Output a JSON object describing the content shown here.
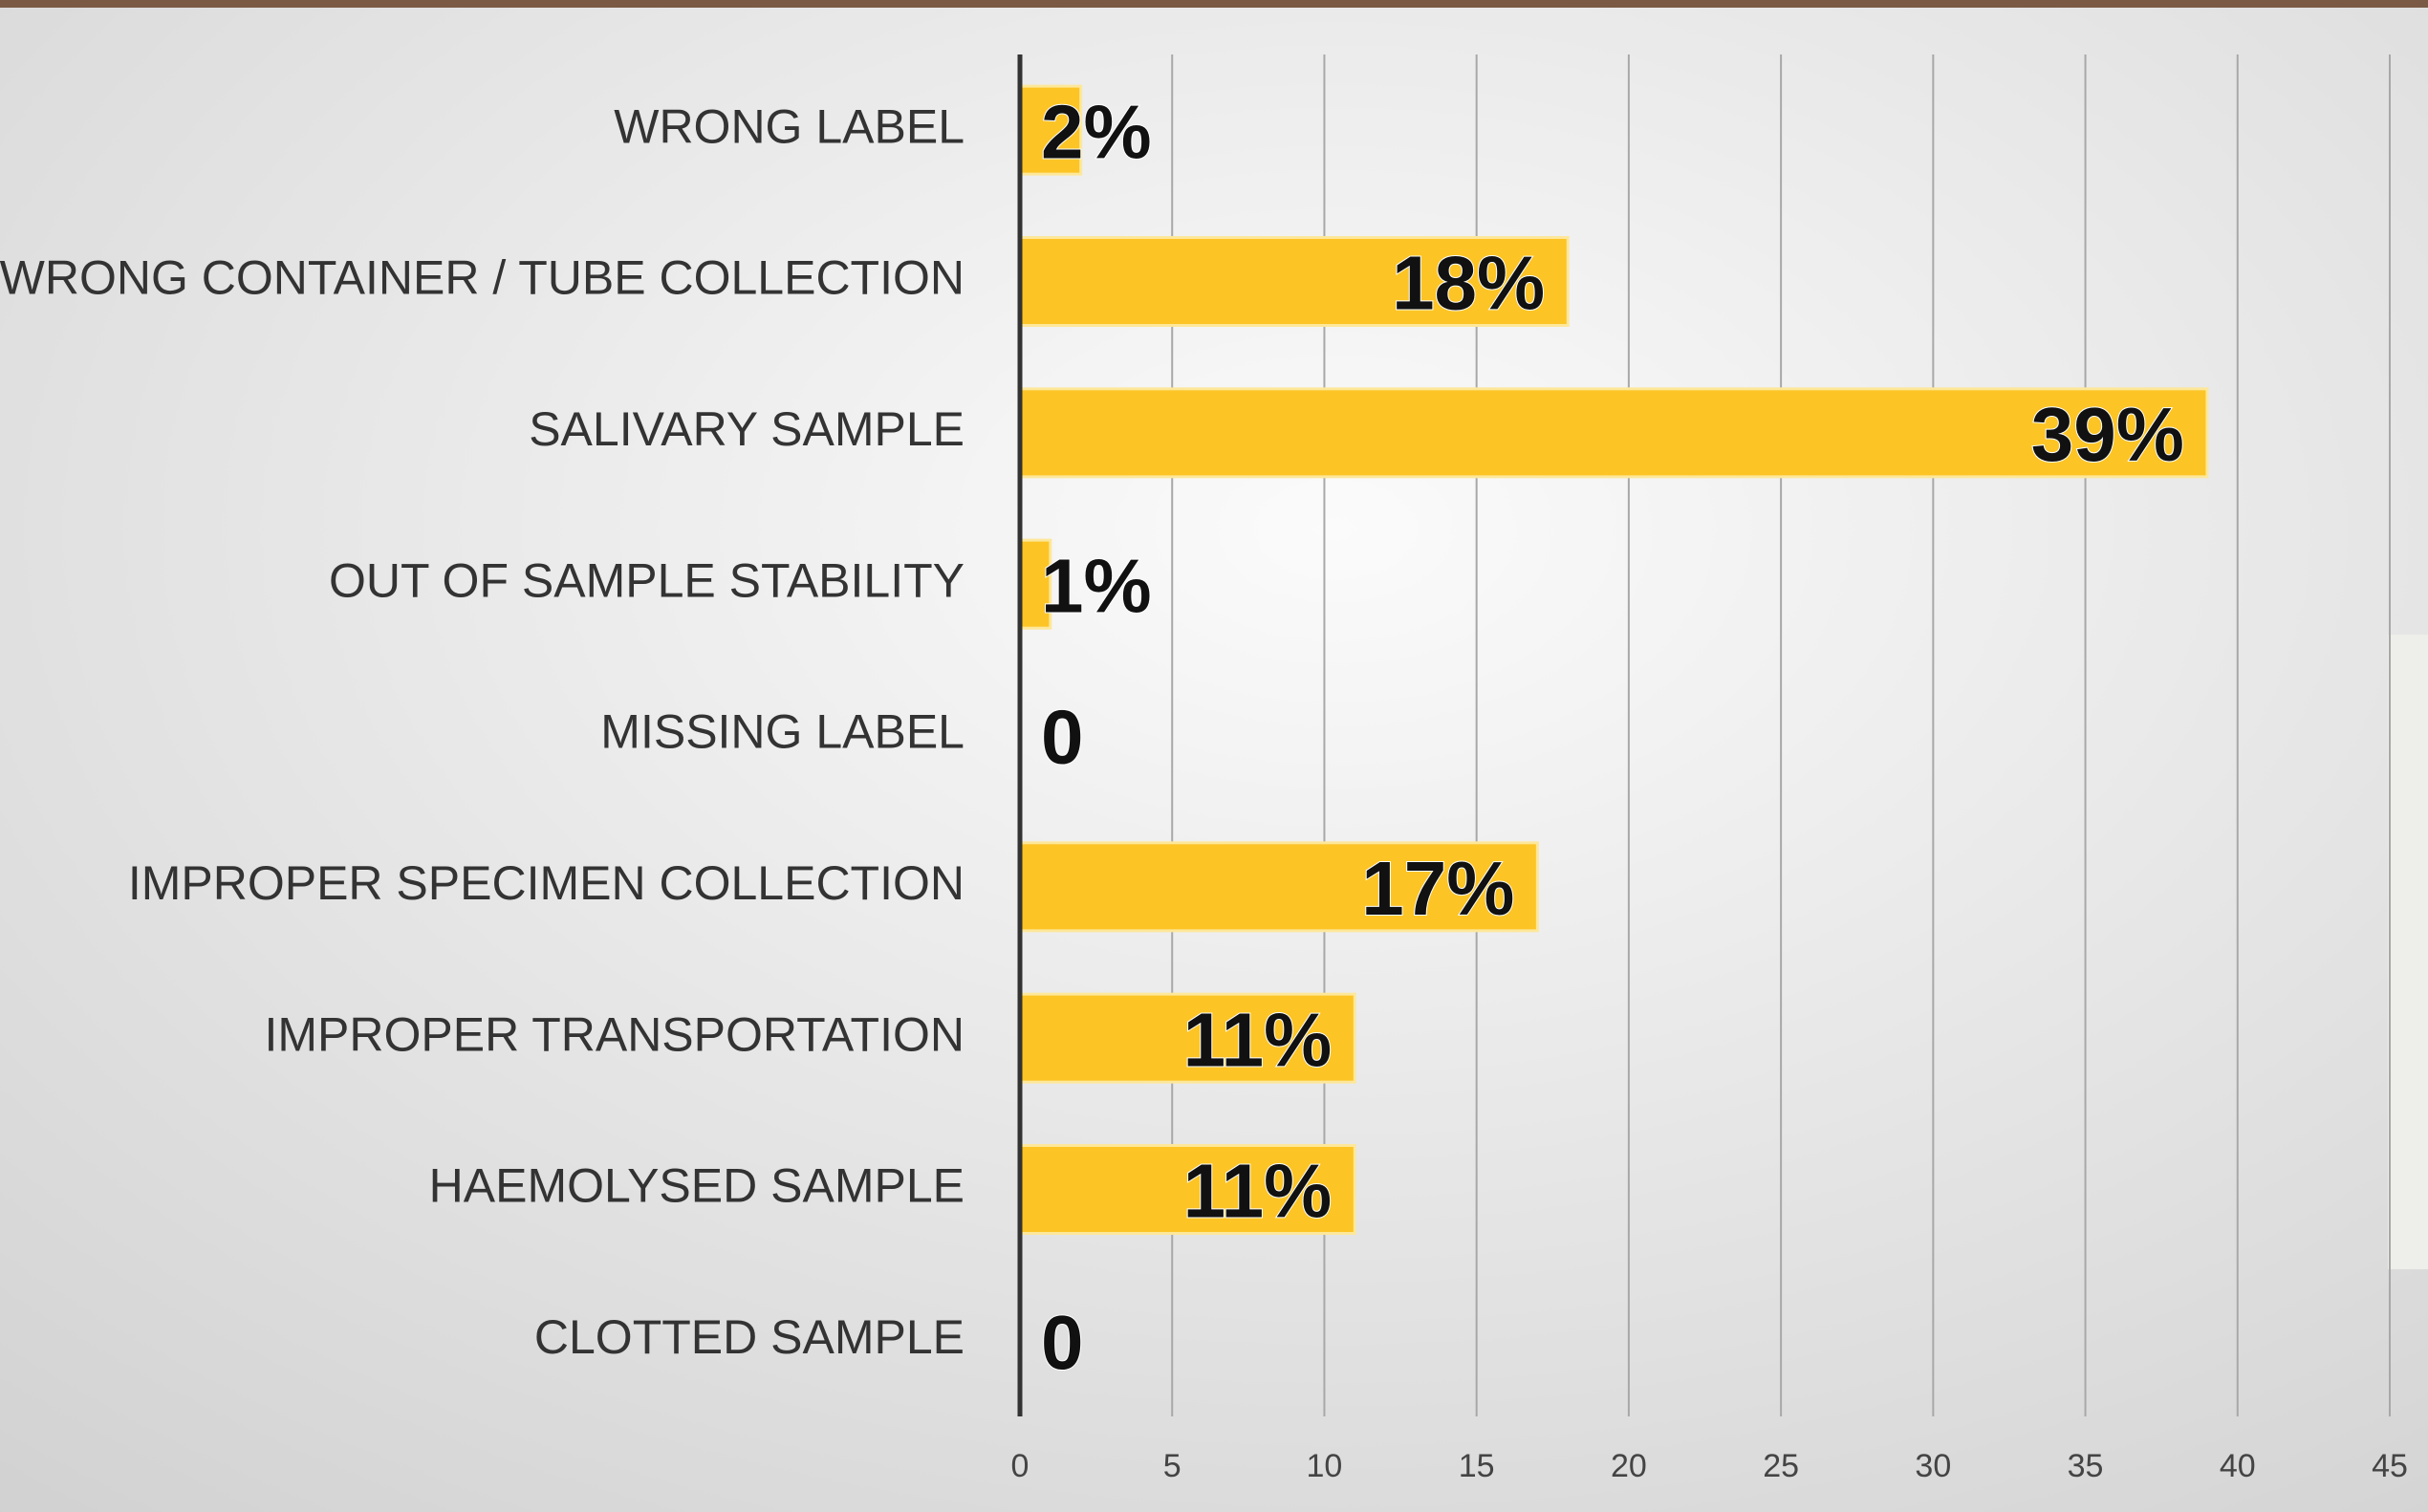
{
  "chart_data": {
    "type": "bar",
    "orientation": "horizontal",
    "categories": [
      "WRONG LABEL",
      "WRONG CONTAINER / TUBE COLLECTION",
      "SALIVARY SAMPLE",
      "OUT OF SAMPLE STABILITY",
      "MISSING LABEL",
      "IMPROPER SPECIMEN COLLECTION",
      "IMPROPER TRANSPORTATION",
      "HAEMOLYSED SAMPLE",
      "CLOTTED SAMPLE"
    ],
    "values": [
      2,
      18,
      39,
      1,
      0,
      17,
      11,
      11,
      0
    ],
    "value_labels": [
      "2%",
      "18%",
      "39%",
      "1%",
      "0",
      "17%",
      "11%",
      "11%",
      "0"
    ],
    "color": "#fcc425",
    "xlim": [
      0,
      45
    ],
    "xticks": [
      0,
      5,
      10,
      15,
      20,
      25,
      30,
      35,
      40,
      45
    ],
    "grid": true
  }
}
